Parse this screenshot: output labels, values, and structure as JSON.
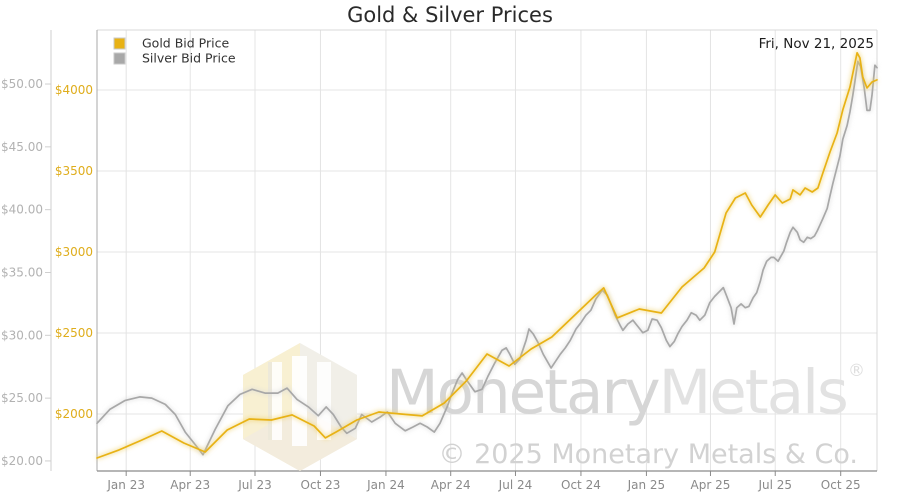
{
  "title": "Gold & Silver Prices",
  "date_label": "Fri, Nov 21, 2025",
  "legend": [
    {
      "label": "Gold Bid Price",
      "color": "#E8B215"
    },
    {
      "label": "Silver Bid Price",
      "color": "#A8A8A8"
    }
  ],
  "watermark": {
    "brand_first": "Monetary",
    "brand_second": "Metals",
    "registered": "®",
    "copyright": "© 2025 Monetary Metals & Co."
  },
  "chart_data": {
    "type": "line",
    "title": "Gold & Silver Prices",
    "x_start": "2022-11-21",
    "x_end": "2025-11-21",
    "grid": true,
    "legend_position": "top-left",
    "x_ticks": [
      {
        "label": "Jan 23",
        "date": "2023-01-01"
      },
      {
        "label": "Apr 23",
        "date": "2023-04-01"
      },
      {
        "label": "Jul 23",
        "date": "2023-07-01"
      },
      {
        "label": "Oct 23",
        "date": "2023-10-01"
      },
      {
        "label": "Jan 24",
        "date": "2024-01-01"
      },
      {
        "label": "Apr 24",
        "date": "2024-04-01"
      },
      {
        "label": "Jul 24",
        "date": "2024-07-01"
      },
      {
        "label": "Oct 24",
        "date": "2024-10-01"
      },
      {
        "label": "Jan 25",
        "date": "2025-01-01"
      },
      {
        "label": "Apr 25",
        "date": "2025-04-01"
      },
      {
        "label": "Jul 25",
        "date": "2025-07-01"
      },
      {
        "label": "Oct 25",
        "date": "2025-10-01"
      }
    ],
    "axes": {
      "silver": {
        "side": "outer-left",
        "tick_values": [
          20,
          25,
          30,
          35,
          40,
          45,
          50
        ],
        "tick_labels": [
          "$20.00",
          "$25.00",
          "$30.00",
          "$35.00",
          "$40.00",
          "$45.00",
          "$50.00"
        ],
        "min": 19.2,
        "max": 54.3,
        "label_color": "#b2b2b2"
      },
      "gold": {
        "side": "inner-left",
        "tick_values": [
          2000,
          2500,
          3000,
          3500,
          4000
        ],
        "tick_labels": [
          "$2000",
          "$2500",
          "$3000",
          "$3500",
          "$4000"
        ],
        "min": 1648,
        "max": 4370,
        "label_color": "#dfad1c"
      }
    },
    "series": [
      {
        "name": "Gold Bid Price",
        "axis": "gold",
        "color": "#E8B215",
        "glow_color": "#EFD066",
        "points": [
          [
            "2022-11-21",
            1728
          ],
          [
            "2022-12-22",
            1778
          ],
          [
            "2023-01-20",
            1833
          ],
          [
            "2023-02-20",
            1895
          ],
          [
            "2023-03-23",
            1821
          ],
          [
            "2023-04-22",
            1765
          ],
          [
            "2023-05-23",
            1901
          ],
          [
            "2023-06-23",
            1969
          ],
          [
            "2023-07-24",
            1963
          ],
          [
            "2023-08-22",
            1994
          ],
          [
            "2023-09-22",
            1926
          ],
          [
            "2023-10-08",
            1852
          ],
          [
            "2023-10-23",
            1889
          ],
          [
            "2023-11-21",
            1963
          ],
          [
            "2023-12-22",
            2012
          ],
          [
            "2024-01-22",
            2000
          ],
          [
            "2024-02-21",
            1988
          ],
          [
            "2024-03-23",
            2068
          ],
          [
            "2024-04-23",
            2204
          ],
          [
            "2024-05-22",
            2370
          ],
          [
            "2024-06-22",
            2296
          ],
          [
            "2024-07-23",
            2401
          ],
          [
            "2024-08-21",
            2475
          ],
          [
            "2024-09-21",
            2605
          ],
          [
            "2024-10-22",
            2735
          ],
          [
            "2024-11-02",
            2778
          ],
          [
            "2024-11-21",
            2593
          ],
          [
            "2024-12-22",
            2648
          ],
          [
            "2025-01-22",
            2623
          ],
          [
            "2025-02-20",
            2784
          ],
          [
            "2025-03-23",
            2901
          ],
          [
            "2025-04-07",
            3000
          ],
          [
            "2025-04-23",
            3241
          ],
          [
            "2025-05-06",
            3333
          ],
          [
            "2025-05-20",
            3364
          ],
          [
            "2025-05-29",
            3290
          ],
          [
            "2025-06-10",
            3216
          ],
          [
            "2025-06-21",
            3290
          ],
          [
            "2025-07-01",
            3352
          ],
          [
            "2025-07-11",
            3302
          ],
          [
            "2025-07-22",
            3327
          ],
          [
            "2025-07-26",
            3383
          ],
          [
            "2025-08-05",
            3352
          ],
          [
            "2025-08-12",
            3395
          ],
          [
            "2025-08-22",
            3370
          ],
          [
            "2025-08-30",
            3395
          ],
          [
            "2025-09-06",
            3488
          ],
          [
            "2025-09-16",
            3617
          ],
          [
            "2025-09-26",
            3734
          ],
          [
            "2025-10-04",
            3877
          ],
          [
            "2025-10-14",
            4019
          ],
          [
            "2025-10-24",
            4229
          ],
          [
            "2025-10-28",
            4198
          ],
          [
            "2025-11-01",
            4080
          ],
          [
            "2025-11-07",
            4012
          ],
          [
            "2025-11-14",
            4049
          ],
          [
            "2025-11-21",
            4062
          ]
        ]
      },
      {
        "name": "Silver Bid Price",
        "axis": "silver",
        "color": "#A8A8A8",
        "glow_color": "#D8D8D8",
        "points": [
          [
            "2022-11-21",
            23.0
          ],
          [
            "2022-12-09",
            24.1
          ],
          [
            "2022-12-30",
            24.8
          ],
          [
            "2023-01-20",
            25.1
          ],
          [
            "2023-02-06",
            25.0
          ],
          [
            "2023-02-25",
            24.5
          ],
          [
            "2023-03-11",
            23.7
          ],
          [
            "2023-03-25",
            22.3
          ],
          [
            "2023-04-08",
            21.3
          ],
          [
            "2023-04-19",
            20.5
          ],
          [
            "2023-05-06",
            22.5
          ],
          [
            "2023-05-24",
            24.4
          ],
          [
            "2023-06-10",
            25.3
          ],
          [
            "2023-06-27",
            25.7
          ],
          [
            "2023-07-15",
            25.4
          ],
          [
            "2023-08-02",
            25.4
          ],
          [
            "2023-08-15",
            25.8
          ],
          [
            "2023-08-29",
            24.9
          ],
          [
            "2023-09-14",
            24.3
          ],
          [
            "2023-09-28",
            23.6
          ],
          [
            "2023-10-09",
            24.3
          ],
          [
            "2023-10-19",
            23.7
          ],
          [
            "2023-10-30",
            22.7
          ],
          [
            "2023-11-07",
            22.2
          ],
          [
            "2023-11-19",
            22.6
          ],
          [
            "2023-11-28",
            23.7
          ],
          [
            "2023-12-12",
            23.1
          ],
          [
            "2023-12-24",
            23.5
          ],
          [
            "2024-01-03",
            23.9
          ],
          [
            "2024-01-14",
            23.0
          ],
          [
            "2024-01-28",
            22.4
          ],
          [
            "2024-02-08",
            22.7
          ],
          [
            "2024-02-18",
            23.0
          ],
          [
            "2024-02-28",
            22.7
          ],
          [
            "2024-03-09",
            22.3
          ],
          [
            "2024-03-17",
            23.0
          ],
          [
            "2024-03-27",
            24.3
          ],
          [
            "2024-04-03",
            25.4
          ],
          [
            "2024-04-11",
            26.5
          ],
          [
            "2024-04-17",
            27.0
          ],
          [
            "2024-04-25",
            26.3
          ],
          [
            "2024-05-05",
            25.5
          ],
          [
            "2024-05-15",
            25.7
          ],
          [
            "2024-05-23",
            26.7
          ],
          [
            "2024-06-02",
            27.8
          ],
          [
            "2024-06-12",
            28.8
          ],
          [
            "2024-06-18",
            29.0
          ],
          [
            "2024-06-23",
            28.5
          ],
          [
            "2024-06-30",
            27.7
          ],
          [
            "2024-07-07",
            28.1
          ],
          [
            "2024-07-16",
            29.6
          ],
          [
            "2024-07-20",
            30.5
          ],
          [
            "2024-07-26",
            30.1
          ],
          [
            "2024-08-02",
            29.4
          ],
          [
            "2024-08-09",
            28.5
          ],
          [
            "2024-08-16",
            27.8
          ],
          [
            "2024-08-20",
            27.4
          ],
          [
            "2024-08-26",
            27.9
          ],
          [
            "2024-09-02",
            28.5
          ],
          [
            "2024-09-09",
            29.0
          ],
          [
            "2024-09-16",
            29.6
          ],
          [
            "2024-09-24",
            30.5
          ],
          [
            "2024-10-01",
            31.0
          ],
          [
            "2024-10-08",
            31.6
          ],
          [
            "2024-10-15",
            32.0
          ],
          [
            "2024-10-22",
            32.9
          ],
          [
            "2024-10-31",
            33.6
          ],
          [
            "2024-11-07",
            33.2
          ],
          [
            "2024-11-12",
            32.5
          ],
          [
            "2024-11-18",
            31.6
          ],
          [
            "2024-11-25",
            30.8
          ],
          [
            "2024-11-29",
            30.4
          ],
          [
            "2024-12-06",
            30.9
          ],
          [
            "2024-12-13",
            31.2
          ],
          [
            "2024-12-20",
            30.7
          ],
          [
            "2024-12-27",
            30.2
          ],
          [
            "2025-01-03",
            30.4
          ],
          [
            "2025-01-09",
            31.3
          ],
          [
            "2025-01-16",
            31.2
          ],
          [
            "2025-01-22",
            30.6
          ],
          [
            "2025-01-29",
            29.6
          ],
          [
            "2025-02-03",
            29.1
          ],
          [
            "2025-02-09",
            29.5
          ],
          [
            "2025-02-14",
            30.1
          ],
          [
            "2025-02-20",
            30.7
          ],
          [
            "2025-02-27",
            31.2
          ],
          [
            "2025-03-05",
            31.8
          ],
          [
            "2025-03-12",
            31.6
          ],
          [
            "2025-03-17",
            31.2
          ],
          [
            "2025-03-24",
            31.6
          ],
          [
            "2025-03-31",
            32.6
          ],
          [
            "2025-04-07",
            33.1
          ],
          [
            "2025-04-14",
            33.5
          ],
          [
            "2025-04-19",
            33.8
          ],
          [
            "2025-04-24",
            33.1
          ],
          [
            "2025-04-30",
            32.2
          ],
          [
            "2025-05-04",
            30.9
          ],
          [
            "2025-05-08",
            32.2
          ],
          [
            "2025-05-14",
            32.5
          ],
          [
            "2025-05-20",
            32.2
          ],
          [
            "2025-05-25",
            32.3
          ],
          [
            "2025-05-31",
            33.0
          ],
          [
            "2025-06-05",
            33.4
          ],
          [
            "2025-06-10",
            34.3
          ],
          [
            "2025-06-14",
            35.2
          ],
          [
            "2025-06-19",
            35.9
          ],
          [
            "2025-06-25",
            36.2
          ],
          [
            "2025-06-29",
            36.2
          ],
          [
            "2025-07-05",
            35.9
          ],
          [
            "2025-07-09",
            36.3
          ],
          [
            "2025-07-13",
            36.7
          ],
          [
            "2025-07-17",
            37.4
          ],
          [
            "2025-07-22",
            38.2
          ],
          [
            "2025-07-26",
            38.6
          ],
          [
            "2025-08-01",
            38.2
          ],
          [
            "2025-08-05",
            37.6
          ],
          [
            "2025-08-10",
            37.4
          ],
          [
            "2025-08-15",
            37.8
          ],
          [
            "2025-08-20",
            37.7
          ],
          [
            "2025-08-25",
            37.9
          ],
          [
            "2025-08-29",
            38.3
          ],
          [
            "2025-09-02",
            38.8
          ],
          [
            "2025-09-06",
            39.3
          ],
          [
            "2025-09-12",
            40.1
          ],
          [
            "2025-09-16",
            41.1
          ],
          [
            "2025-09-20",
            42.1
          ],
          [
            "2025-09-26",
            43.4
          ],
          [
            "2025-09-30",
            44.3
          ],
          [
            "2025-10-04",
            45.6
          ],
          [
            "2025-10-10",
            46.7
          ],
          [
            "2025-10-14",
            47.8
          ],
          [
            "2025-10-18",
            49.1
          ],
          [
            "2025-10-21",
            50.2
          ],
          [
            "2025-10-25",
            51.8
          ],
          [
            "2025-10-29",
            51.4
          ],
          [
            "2025-11-03",
            49.7
          ],
          [
            "2025-11-07",
            47.9
          ],
          [
            "2025-11-11",
            47.9
          ],
          [
            "2025-11-14",
            49.1
          ],
          [
            "2025-11-18",
            51.5
          ],
          [
            "2025-11-21",
            51.3
          ]
        ]
      }
    ]
  }
}
